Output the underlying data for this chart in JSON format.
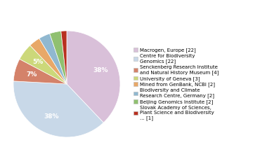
{
  "labels": [
    "Macrogen, Europe [22]",
    "Centre for Biodiversity\nGenomics [22]",
    "Senckenberg Research Institute\nand Natural History Museum [4]",
    "University of Geneva [3]",
    "Mined from GenBank, NCBI [2]",
    "Biodiversity and Climate\nResearch Centre, Germany [2]",
    "Beijing Genomics Institute [2]",
    "Slovak Academy of Sciences,\nPlant Science and Biodiversity\n... [1]"
  ],
  "legend_labels": [
    "Macrogen, Europe [22]",
    "Centre for Biodiversity\nGenomics [22]",
    "Senckenberg Research Institute\nand Natural History Museum [4]",
    "University of Geneva [3]",
    "Mined from GenBank, NCBI [2]",
    "Biodiversity and Climate\nResearch Centre, Germany [2]",
    "Beijing Genomics Institute [2]",
    "Slovak Academy of Sciences,\nPlant Science and Biodiversity\n... [1]"
  ],
  "values": [
    22,
    22,
    4,
    3,
    2,
    2,
    2,
    1
  ],
  "colors": [
    "#d9c0d9",
    "#c8d8e8",
    "#d4826a",
    "#ccd87a",
    "#e8a868",
    "#90b8d0",
    "#90c070",
    "#b83020"
  ],
  "startangle": 90,
  "figsize": [
    3.8,
    2.4
  ],
  "dpi": 100
}
